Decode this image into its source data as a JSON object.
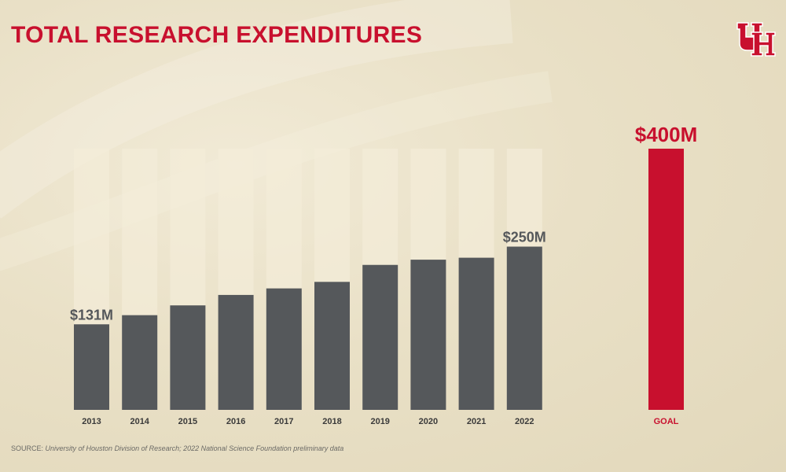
{
  "title": "TOTAL RESEARCH EXPENDITURES",
  "source_label": "SOURCE:",
  "source_text": "University of Houston Division of Research; 2022 National Science Foundation preliminary data",
  "logo_text": "UH",
  "colors": {
    "title": "#c8102e",
    "bar": "#55585b",
    "bar_track": "#f3ecd8",
    "goal_bar": "#c8102e",
    "goal_label": "#c8102e",
    "value_label": "#55585b",
    "tick_label": "#3a3a3a"
  },
  "chart_data": {
    "type": "bar",
    "categories": [
      "2013",
      "2014",
      "2015",
      "2016",
      "2017",
      "2018",
      "2019",
      "2020",
      "2021",
      "2022"
    ],
    "values": [
      131,
      145,
      160,
      176,
      186,
      196,
      222,
      230,
      233,
      250
    ],
    "unit": "$M",
    "ylim": [
      0,
      400
    ],
    "data_labels": [
      {
        "category": "2013",
        "text": "$131M"
      },
      {
        "category": "2022",
        "text": "$250M"
      }
    ],
    "goal": {
      "category": "GOAL",
      "value": 400,
      "label": "$400M"
    },
    "grid": false,
    "legend": "none"
  }
}
